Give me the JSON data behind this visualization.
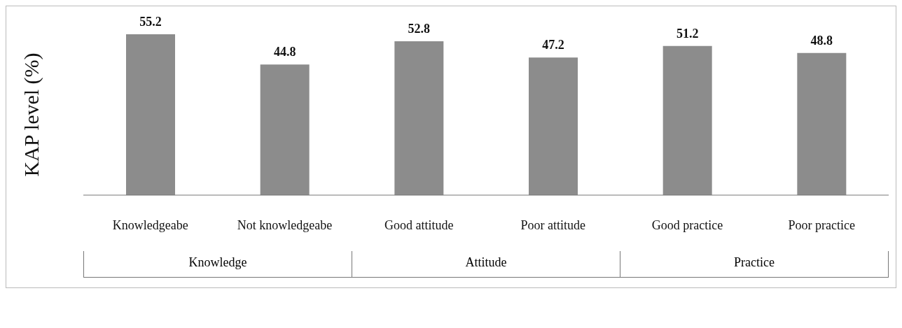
{
  "chart_data": {
    "type": "bar",
    "ylabel": "KAP level (%)",
    "categories": [
      "Knowledgeabe",
      "Not knowledgeabe",
      "Good attitude",
      "Poor attitude",
      "Good practice",
      "Poor practice"
    ],
    "values": [
      55.2,
      44.8,
      52.8,
      47.2,
      51.2,
      48.8
    ],
    "color": "#8c8c8c",
    "data_labels": true,
    "annotations": [
      "Knowledge",
      "Attitude",
      "Practice"
    ]
  }
}
